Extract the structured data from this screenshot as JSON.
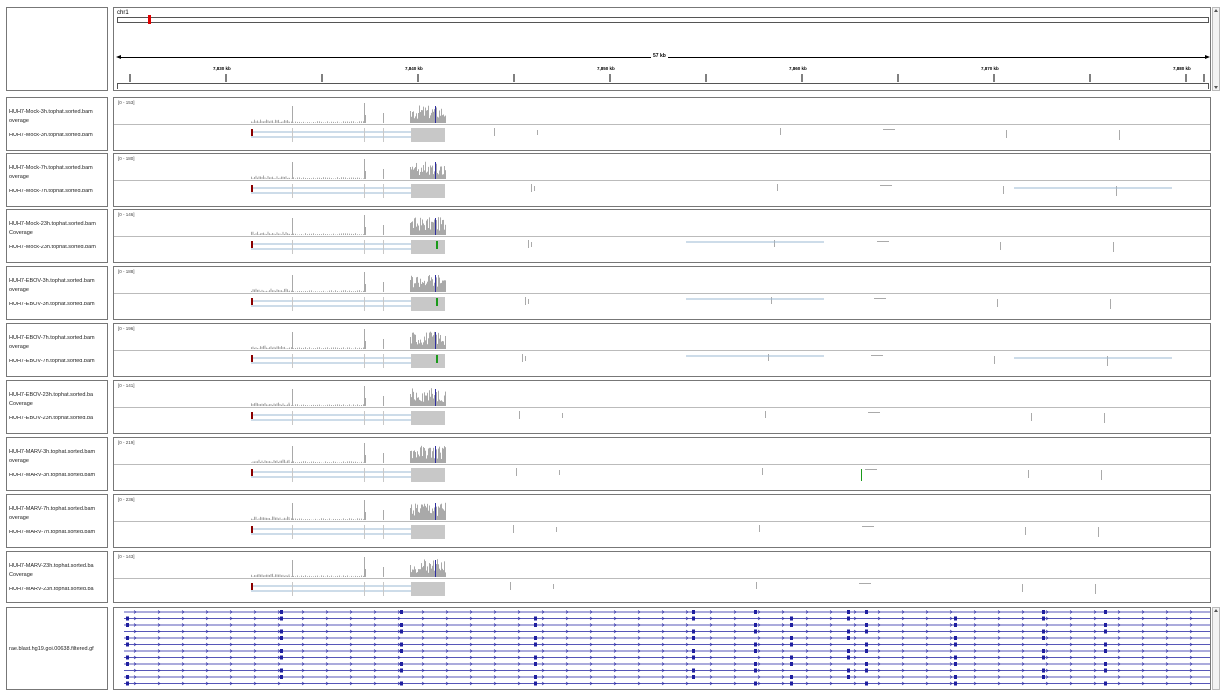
{
  "header": {
    "chromosome": "chr1",
    "span_label": "57 kb",
    "ticks": [
      "7,830 kb",
      "7,840 kb",
      "7,850 kb",
      "7,860 kb",
      "7,870 kb",
      "7,880 kb"
    ]
  },
  "tracks": [
    {
      "coverage_label": "HUH7-Mock-3h.tophat.sorted.bam overage",
      "reads_label": "HUH7-Mock-3h.tophat.sorted.bam",
      "range": "[0 - 153]"
    },
    {
      "coverage_label": "HUH7-Mock-7h.tophat.sorted.bam overage",
      "reads_label": "HUH7-Mock-7h.tophat.sorted.bam",
      "range": "[0 - 180]"
    },
    {
      "coverage_label": "HUH7-Mock-23h.tophat.sorted.bam Coverage",
      "reads_label": "HUH7-Mock-23h.tophat.sorted.bam",
      "range": "[0 - 146]"
    },
    {
      "coverage_label": "HUH7-EBOV-3h.tophat.sorted.bam overage",
      "reads_label": "HUH7-EBOV-3h.tophat.sorted.bam",
      "range": "[0 - 188]"
    },
    {
      "coverage_label": "HUH7-EBOV-7h.tophat.sorted.bam overage",
      "reads_label": "HUH7-EBOV-7h.tophat.sorted.bam",
      "range": "[0 - 196]"
    },
    {
      "coverage_label": "HUH7-EBOV-23h.tophat.sorted.ba Coverage",
      "reads_label": "HUH7-EBOV-23h.tophat.sorted.ba",
      "range": "[0 - 141]"
    },
    {
      "coverage_label": "HUH7-MARV-3h.tophat.sorted.bam overage",
      "reads_label": "HUH7-MARV-3h.tophat.sorted.bam",
      "range": "[0 - 219]"
    },
    {
      "coverage_label": "HUH7-MARV-7h.tophat.sorted.bam overage",
      "reads_label": "HUH7-MARV-7h.tophat.sorted.bam",
      "range": "[0 - 236]"
    },
    {
      "coverage_label": "HUH7-MARV-23h.tophat.sorted.ba Coverage",
      "reads_label": "HUH7-MARV-23h.tophat.sorted.ba",
      "range": "[0 - 143]"
    }
  ],
  "annotation_track": {
    "label": "rae.blast.hg19.goi.00638.filtered.gf"
  },
  "colors": {
    "coverage": "#a9a9a9",
    "read": "#c8c8c8",
    "junction": "#9bb8d3",
    "mismatch_red": "#8b0000",
    "mismatch_green": "#1a9a1a",
    "feature": "#1f1fa0",
    "ideogram_marker": "#e00000"
  }
}
